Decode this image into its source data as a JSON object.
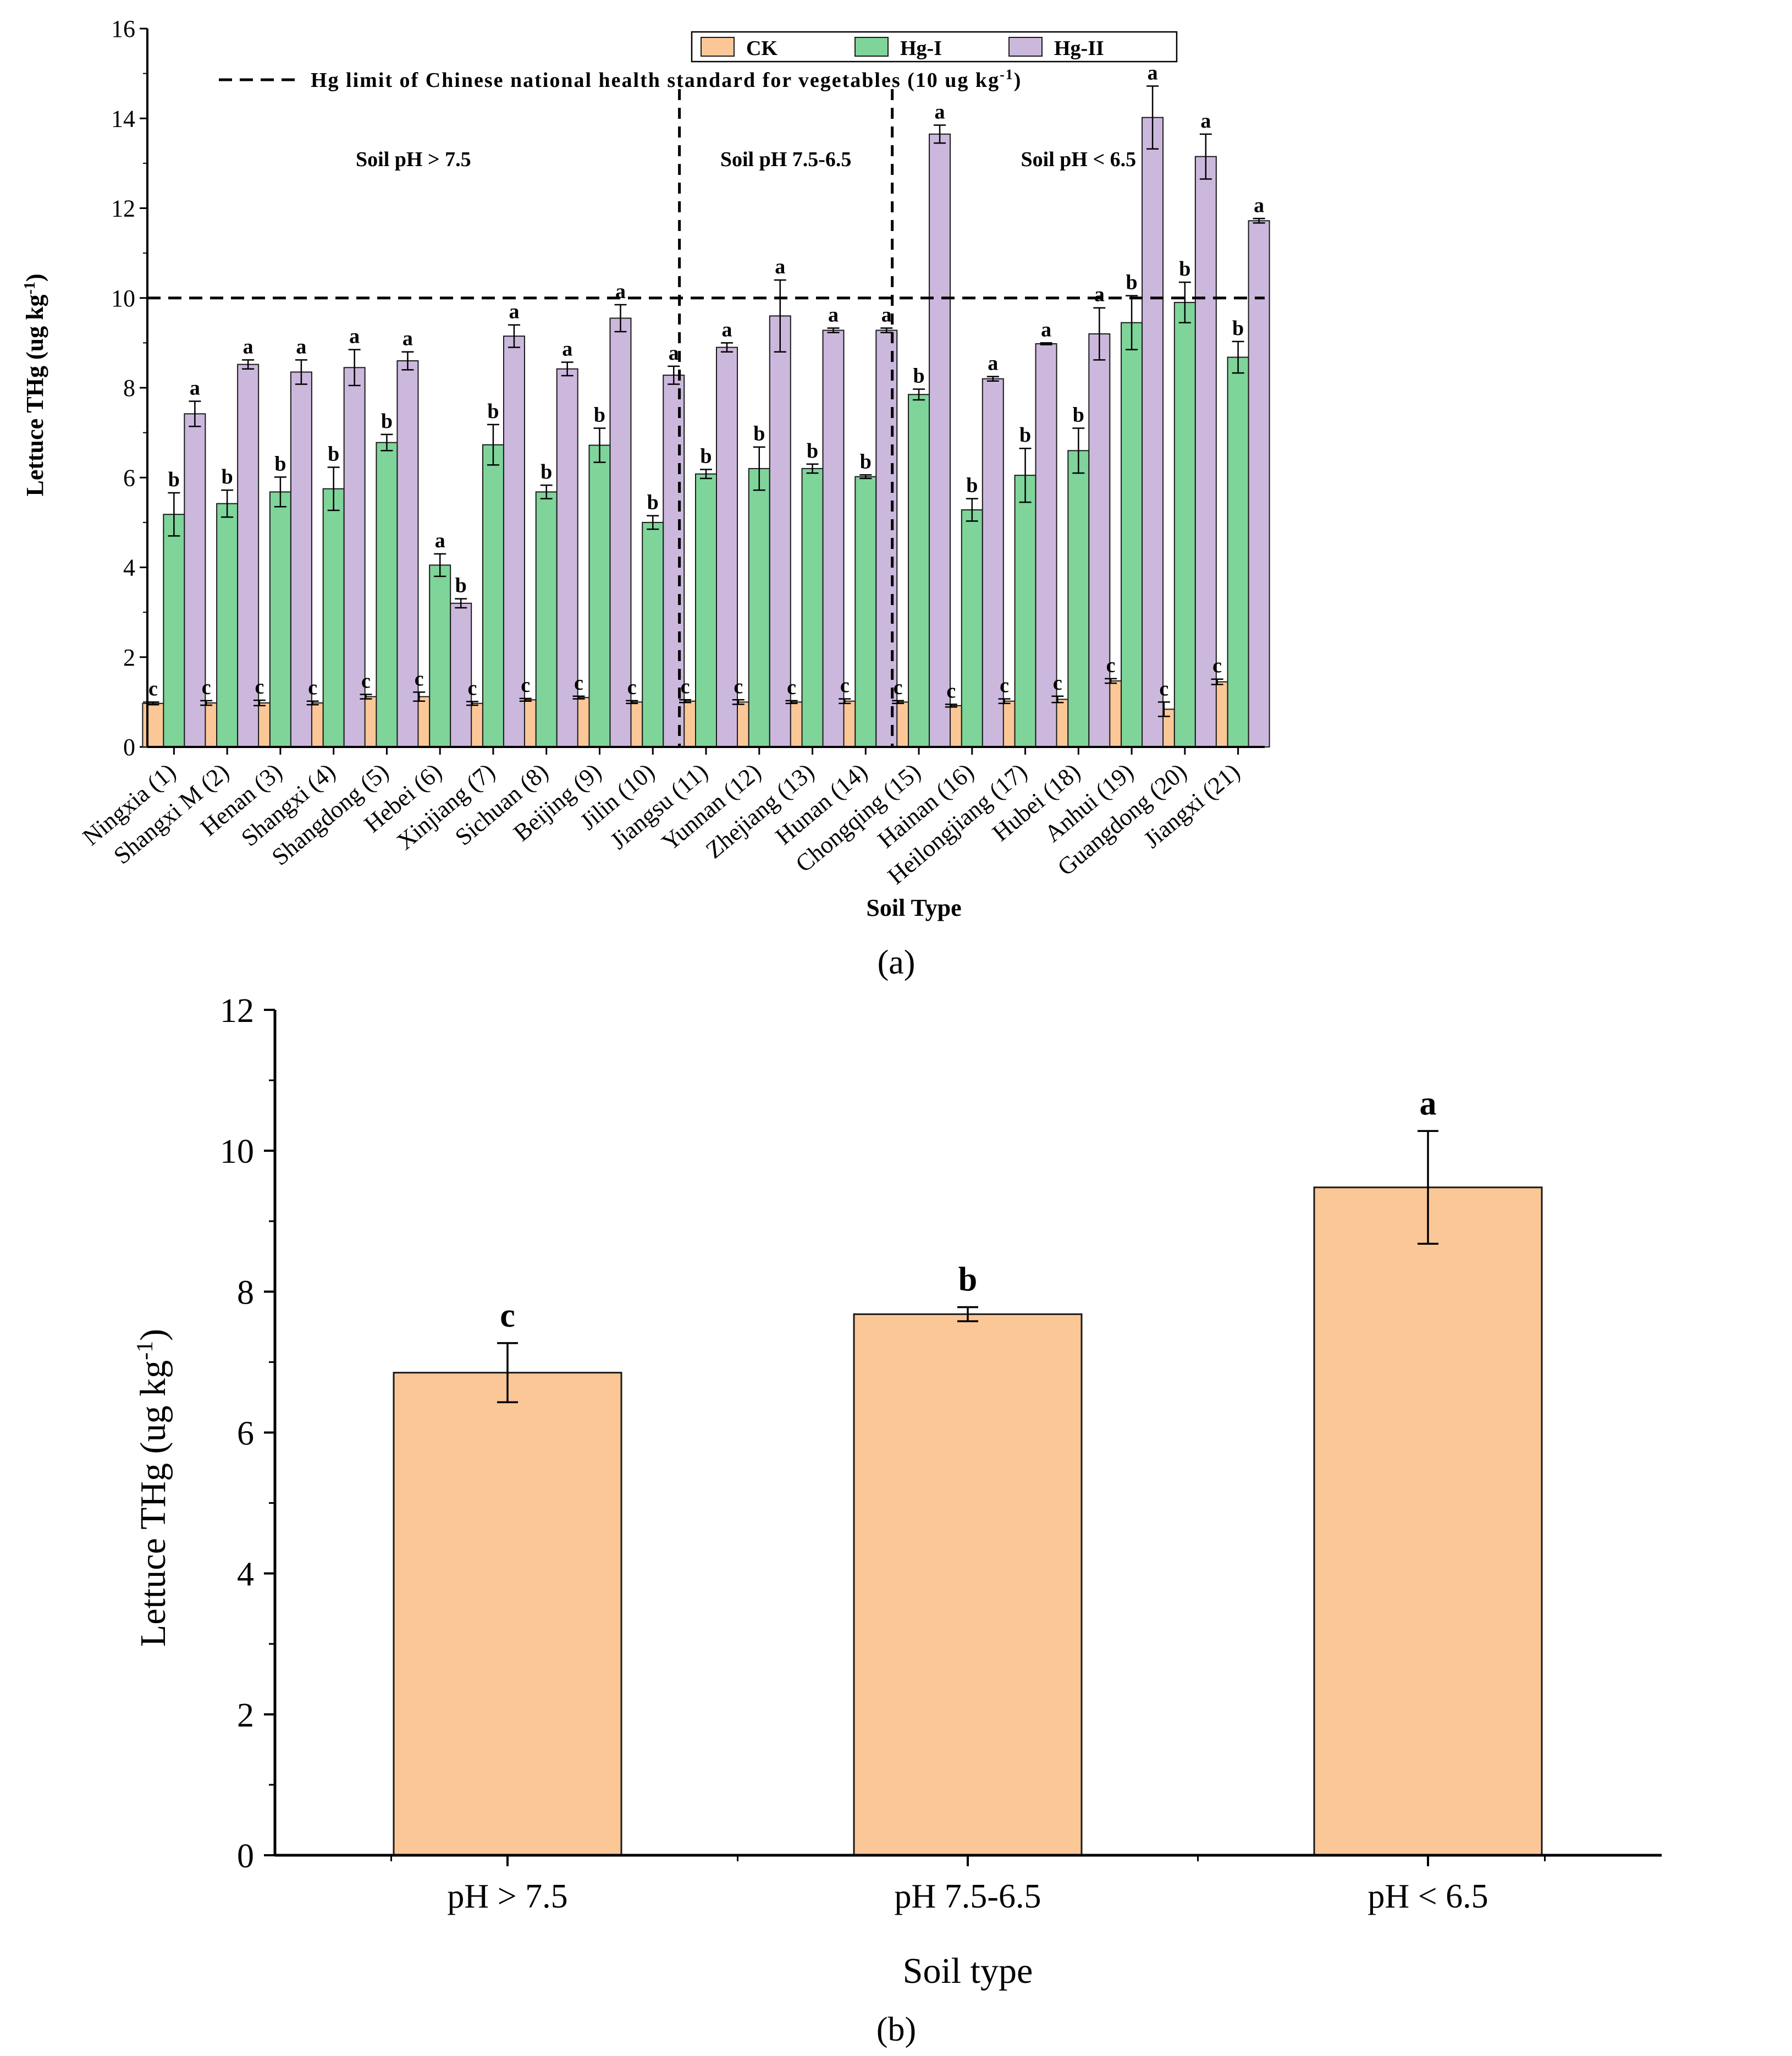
{
  "chart_data": [
    {
      "type": "bar",
      "panel_label": "(a)",
      "title": "",
      "xlabel": "Soil Type",
      "ylabel": "Lettuce THg (ug kg",
      "ylabel_sup": "-1",
      "ylabel_close": ")",
      "ylim": [
        0,
        16
      ],
      "yticks": [
        0,
        2,
        4,
        6,
        8,
        10,
        12,
        14,
        16
      ],
      "grid": false,
      "legend_position": "top-center",
      "categories": [
        "Ningxia (1)",
        "Shangxi M (2)",
        "Henan (3)",
        "Shangxi (4)",
        "Shangdong (5)",
        "Hebei (6)",
        "Xinjiang (7)",
        "Sichuan (8)",
        "Beijing (9)",
        "Jilin (10)",
        "Jiangsu (11)",
        "Yunnan (12)",
        "Zhejiang (13)",
        "Hunan (14)",
        "Chongqing (15)",
        "Hainan (16)",
        "Heilongjiang (17)",
        "Hubei (18)",
        "Anhui (19)",
        "Guangdong (20)",
        "Jiangxi (21)"
      ],
      "series": [
        {
          "name": "CK",
          "color": "#fcc797",
          "values": [
            0.97,
            0.98,
            0.98,
            0.98,
            1.12,
            1.12,
            0.97,
            1.05,
            1.1,
            1.0,
            1.02,
            1.0,
            1.0,
            1.02,
            1.0,
            0.92,
            1.02,
            1.06,
            1.47,
            0.84,
            1.45
          ],
          "errors": [
            0.03,
            0.05,
            0.06,
            0.04,
            0.05,
            0.1,
            0.04,
            0.03,
            0.03,
            0.03,
            0.03,
            0.05,
            0.03,
            0.05,
            0.03,
            0.03,
            0.05,
            0.07,
            0.05,
            0.16,
            0.06
          ],
          "letters": [
            "c",
            "c",
            "c",
            "c",
            "c",
            "c",
            "c",
            "c",
            "c",
            "c",
            "c",
            "c",
            "c",
            "c",
            "c",
            "c",
            "c",
            "c",
            "c",
            "c",
            "c"
          ]
        },
        {
          "name": "Hg-I",
          "color": "#7fd49a",
          "values": [
            5.18,
            5.42,
            5.68,
            5.75,
            6.78,
            4.05,
            6.73,
            5.68,
            6.72,
            5.0,
            6.08,
            6.2,
            6.2,
            6.02,
            7.85,
            5.28,
            6.05,
            6.6,
            9.45,
            9.9,
            8.68
          ],
          "errors": [
            0.48,
            0.3,
            0.33,
            0.48,
            0.18,
            0.25,
            0.45,
            0.15,
            0.38,
            0.15,
            0.1,
            0.48,
            0.1,
            0.04,
            0.12,
            0.25,
            0.6,
            0.5,
            0.6,
            0.45,
            0.35
          ],
          "letters": [
            "b",
            "b",
            "b",
            "b",
            "b",
            "a",
            "b",
            "b",
            "b",
            "b",
            "b",
            "b",
            "b",
            "b",
            "b",
            "b",
            "b",
            "b",
            "b",
            "b",
            "b"
          ]
        },
        {
          "name": "Hg-II",
          "color": "#ccb8dd",
          "values": [
            7.42,
            8.52,
            8.35,
            8.45,
            8.6,
            3.2,
            9.15,
            8.42,
            9.55,
            8.28,
            8.9,
            9.6,
            9.28,
            9.28,
            13.65,
            8.2,
            8.98,
            9.2,
            14.02,
            13.15,
            11.72
          ],
          "errors": [
            0.28,
            0.1,
            0.27,
            0.4,
            0.2,
            0.1,
            0.25,
            0.15,
            0.3,
            0.2,
            0.1,
            0.8,
            0.05,
            0.05,
            0.2,
            0.05,
            0.02,
            0.58,
            0.7,
            0.5,
            0.05
          ],
          "letters": [
            "a",
            "a",
            "a",
            "a",
            "a",
            "b",
            "a",
            "a",
            "a",
            "a",
            "a",
            "a",
            "a",
            "a",
            "a",
            "a",
            "a",
            "a",
            "a",
            "a",
            "a"
          ]
        }
      ],
      "reference_line": {
        "value": 10,
        "label": "Hg limit of Chinese national health standard for vegetables (10 ug kg",
        "label_sup": "-1",
        "label_close": ")"
      },
      "group_dividers_after_category": [
        10,
        14
      ],
      "group_labels": [
        "Soil pH > 7.5",
        "Soil pH 7.5-6.5",
        "Soil pH < 6.5"
      ]
    },
    {
      "type": "bar",
      "panel_label": "(b)",
      "title": "",
      "xlabel": "Soil type",
      "ylabel": "Lettuce THg (ug kg",
      "ylabel_sup": "-1",
      "ylabel_close": ")",
      "ylim": [
        0,
        12
      ],
      "yticks": [
        0,
        2,
        4,
        6,
        8,
        10,
        12
      ],
      "grid": false,
      "color": "#fcc797",
      "categories": [
        "pH > 7.5",
        "pH 7.5-6.5",
        "pH < 6.5"
      ],
      "values": [
        6.85,
        7.68,
        9.48
      ],
      "errors": [
        0.42,
        0.1,
        0.8
      ],
      "letters": [
        "c",
        "b",
        "a"
      ]
    }
  ]
}
